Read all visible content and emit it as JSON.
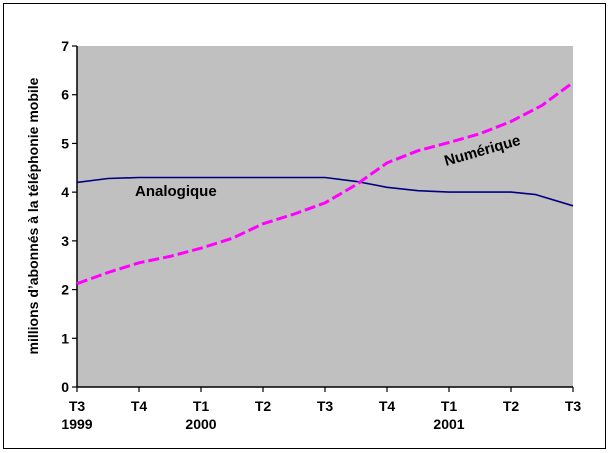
{
  "chart_data": {
    "type": "line",
    "title": "",
    "xlabel": "",
    "ylabel": "millions d’abonnés à la téléphonie mobile",
    "ylim": [
      0,
      7
    ],
    "yticks": [
      0,
      1,
      2,
      3,
      4,
      5,
      6,
      7
    ],
    "grid": false,
    "plot_background": "#c0c0c0",
    "x_tick_labels": [
      {
        "label": "T3",
        "sub": "1999"
      },
      {
        "label": "T4",
        "sub": ""
      },
      {
        "label": "T1",
        "sub": "2000"
      },
      {
        "label": "T2",
        "sub": ""
      },
      {
        "label": "T3",
        "sub": ""
      },
      {
        "label": "T4",
        "sub": ""
      },
      {
        "label": "T1",
        "sub": "2001"
      },
      {
        "label": "T2",
        "sub": ""
      },
      {
        "label": "T3",
        "sub": ""
      }
    ],
    "series": [
      {
        "name": "Analogique",
        "color": "#000080",
        "style": "solid",
        "x": [
          0,
          0.5,
          1,
          2,
          3,
          4,
          4.5,
          5,
          5.5,
          6,
          7,
          7.4,
          8
        ],
        "y": [
          4.2,
          4.28,
          4.3,
          4.3,
          4.3,
          4.3,
          4.22,
          4.1,
          4.03,
          4.0,
          4.0,
          3.95,
          3.72
        ]
      },
      {
        "name": "Numérique",
        "color": "#ff00ff",
        "style": "dashed",
        "x": [
          0,
          0.5,
          1,
          1.5,
          2,
          2.5,
          3,
          3.5,
          4,
          4.5,
          5,
          5.5,
          6,
          6.5,
          7,
          7.5,
          8
        ],
        "y": [
          2.12,
          2.35,
          2.55,
          2.68,
          2.85,
          3.05,
          3.35,
          3.55,
          3.78,
          4.15,
          4.6,
          4.85,
          5.02,
          5.2,
          5.45,
          5.78,
          6.25
        ]
      }
    ],
    "annotations": [
      {
        "text": "Analogique",
        "series": "Analogique"
      },
      {
        "text": "Numérique",
        "series": "Numérique"
      }
    ]
  }
}
